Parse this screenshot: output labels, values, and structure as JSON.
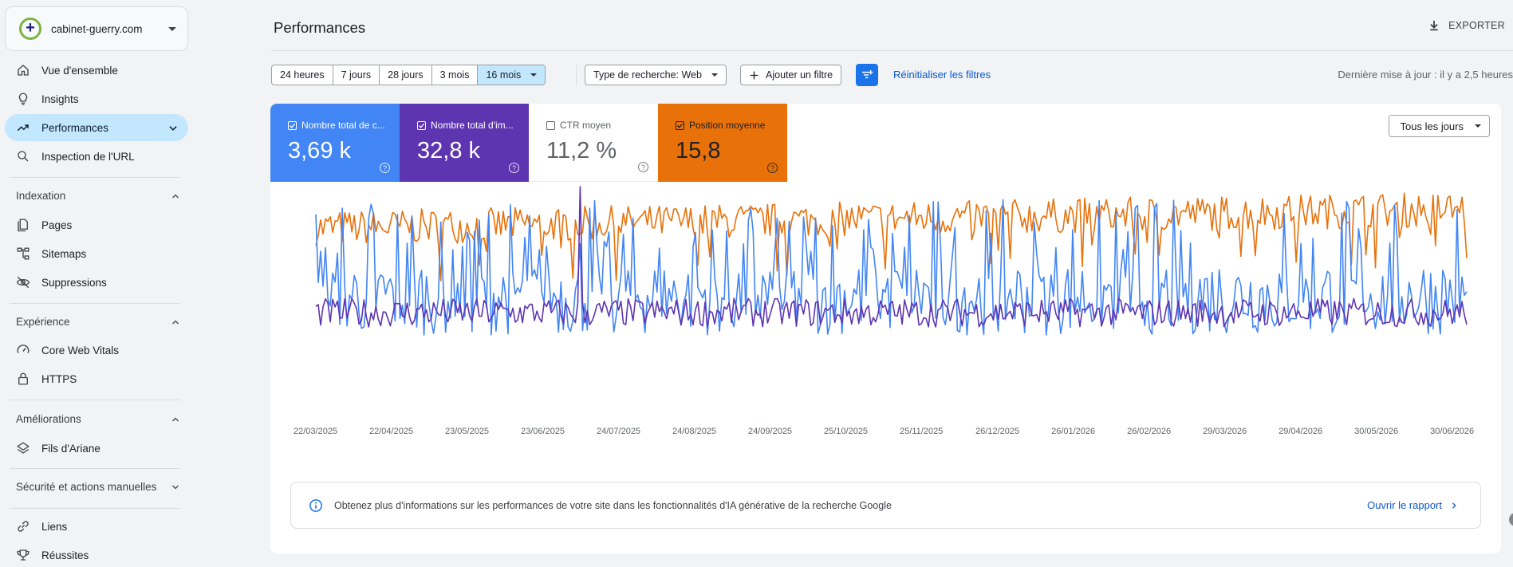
{
  "property": {
    "name": "cabinet-guerry.com",
    "logo_glyph": "+"
  },
  "sidebar": {
    "items_top": [
      {
        "label": "Vue d'ensemble",
        "icon": "home-icon"
      },
      {
        "label": "Insights",
        "icon": "lightbulb-icon"
      },
      {
        "label": "Performances",
        "icon": "trending-up-icon",
        "active": true
      },
      {
        "label": "Inspection de l'URL",
        "icon": "search-icon"
      }
    ],
    "sections": {
      "indexation": {
        "title": "Indexation",
        "items": [
          "Pages",
          "Sitemaps",
          "Suppressions"
        ]
      },
      "experience": {
        "title": "Expérience",
        "items": [
          "Core Web Vitals",
          "HTTPS"
        ]
      },
      "ameliorations": {
        "title": "Améliorations",
        "items": [
          "Fils d'Ariane"
        ]
      },
      "securite": {
        "title": "Sécurité et actions manuelles"
      },
      "bottom": {
        "items": [
          "Liens",
          "Réussites"
        ]
      }
    }
  },
  "header": {
    "title": "Performances",
    "export_label": "EXPORTER"
  },
  "filters": {
    "ranges": [
      "24 heures",
      "7 jours",
      "28 jours",
      "3 mois",
      "16 mois"
    ],
    "selected_range": "16 mois",
    "search_type": "Type de recherche: Web",
    "add_filter": "Ajouter un filtre",
    "reset": "Réinitialiser les filtres",
    "last_update": "Dernière mise à jour : il y a 2,5 heures"
  },
  "metrics": {
    "clicks": {
      "label": "Nombre total de c...",
      "value": "3,69 k",
      "checked": true,
      "color": "#4285f4"
    },
    "impressions": {
      "label": "Nombre total d'im...",
      "value": "32,8 k",
      "checked": true,
      "color": "#5e35b1"
    },
    "ctr": {
      "label": "CTR moyen",
      "value": "11,2 %",
      "checked": false
    },
    "position": {
      "label": "Position moyenne",
      "value": "15,8",
      "checked": true,
      "color": "#e8710a"
    }
  },
  "days_dropdown": "Tous les jours",
  "annotation_marker": "1",
  "info_banner": {
    "text": "Obtenez plus d'informations sur les performances de votre site dans les fonctionnalités d'IA générative de la recherche Google",
    "link": "Ouvrir le rapport"
  },
  "chart_data": {
    "type": "line",
    "x_tick_labels": [
      "22/03/2025",
      "22/04/2025",
      "23/05/2025",
      "23/06/2025",
      "24/07/2025",
      "24/08/2025",
      "24/09/2025",
      "25/10/2025",
      "25/11/2025",
      "26/12/2025",
      "26/01/2026",
      "26/02/2026",
      "29/03/2026",
      "29/04/2026",
      "30/05/2026",
      "30/06/2026"
    ],
    "series": [
      {
        "key": "position",
        "color": "#e8710a",
        "approx_mean_relative": 0.78,
        "volatility": "medium"
      },
      {
        "key": "clicks",
        "color": "#4285f4",
        "approx_mean_relative": 0.35,
        "volatility": "high"
      },
      {
        "key": "impressions",
        "color": "#5e35b1",
        "approx_mean_relative": 0.12,
        "volatility": "low"
      }
    ],
    "grid": false,
    "legend": "metric cards above chart"
  }
}
